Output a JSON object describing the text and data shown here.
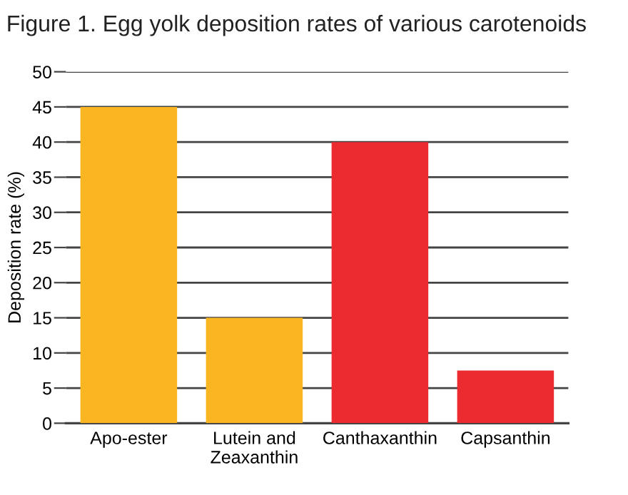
{
  "chart_data": {
    "type": "bar",
    "title": "Figure 1. Egg yolk deposition rates of various carotenoids",
    "ylabel": "Deposition rate (%)",
    "categories": [
      "Apo-ester",
      "Lutein and\nZeaxanthin",
      "Canthaxanthin",
      "Capsanthin"
    ],
    "values": [
      45,
      15,
      40,
      7.5
    ],
    "colors": [
      "#fbb522",
      "#fbb522",
      "#ec2b30",
      "#ec2b30"
    ],
    "ylim": [
      0,
      50
    ],
    "yticks": [
      0,
      5,
      10,
      15,
      20,
      25,
      30,
      35,
      40,
      45,
      50
    ],
    "grid": "y"
  }
}
